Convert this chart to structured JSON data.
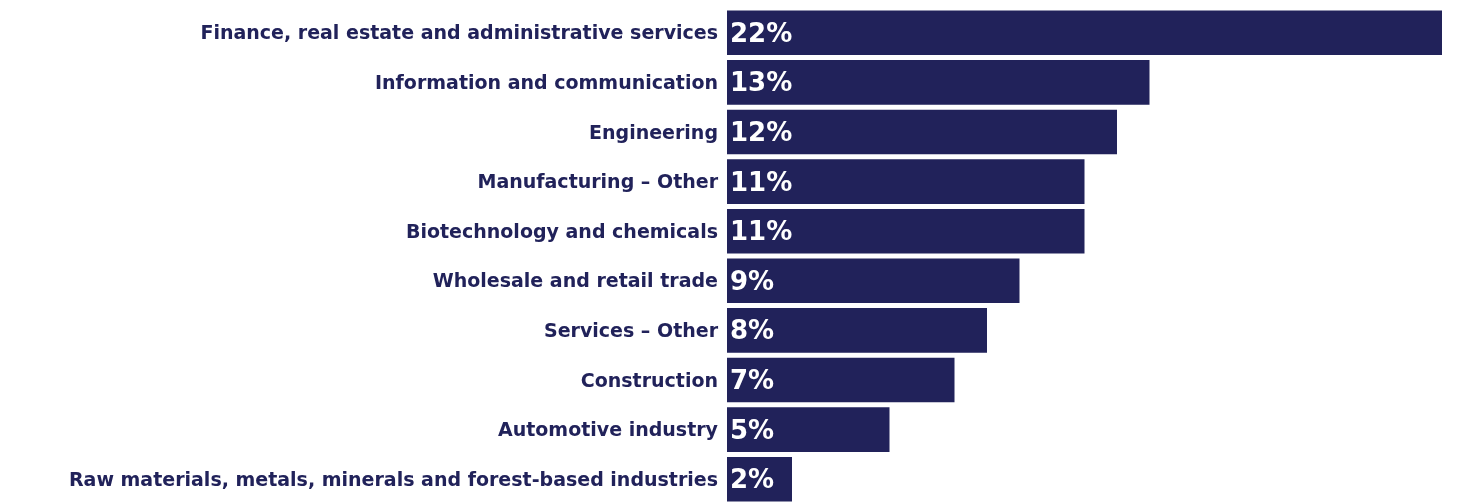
{
  "chart_data": {
    "type": "bar",
    "orientation": "horizontal",
    "categories": [
      "Finance, real estate and administrative services",
      "Information and communication",
      "Engineering",
      "Manufacturing – Other",
      "Biotechnology and chemicals",
      "Wholesale and retail trade",
      "Services – Other",
      "Construction",
      "Automotive industry",
      "Raw materials, metals, minerals and forest-based industries"
    ],
    "values": [
      22,
      13,
      12,
      11,
      11,
      9,
      8,
      7,
      5,
      2
    ],
    "value_labels": [
      "22%",
      "13%",
      "12%",
      "11%",
      "11%",
      "9%",
      "8%",
      "7%",
      "5%",
      "2%"
    ],
    "color": "#21225a",
    "xlim": [
      0,
      22
    ],
    "tick_labels": "y"
  }
}
